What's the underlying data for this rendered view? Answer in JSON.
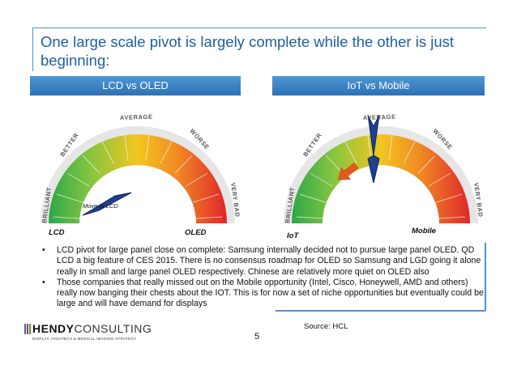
{
  "slide": {
    "title": "One large scale pivot is largely complete while the other is just beginning:",
    "page_number": "5",
    "source": "Source: HCL"
  },
  "left_panel": {
    "header": "LCD vs OLED",
    "gauge_scale": [
      "BRILLIANT",
      "BETTER",
      "AVERAGE",
      "WORSE",
      "VERY BAD"
    ],
    "label_left": "LCD",
    "label_right": "OLED",
    "annotation": "Move to LCD"
  },
  "right_panel": {
    "header": "IoT vs Mobile",
    "gauge_scale": [
      "BRILLIANT",
      "BETTER",
      "AVERAGE",
      "WORSE",
      "VERY BAD"
    ],
    "label_left": "IoT",
    "label_right": "Mobile"
  },
  "bullets": [
    "LCD pivot for large panel close on complete: Samsung internally decided not to pursue large panel OLED. QD LCD a big feature of CES 2015. There is no consensus roadmap for OLED so Samsung and LGD going it alone really in small and large panel OLED respectively. Chinese are relatively more quiet on OLED also",
    "Those companies that really missed out on the Mobile opportunity (Intel, Cisco, Honeywell, AMD and others) really now banging their chests about the IOT. This is for now a set of niche opportunities but eventually could be large and will have demand for displays"
  ],
  "bullet_marker": "•",
  "logo": {
    "name_bold": "HENDY",
    "name_light": "CONSULTING",
    "tagline": "DISPLAY, HIGHTECH & MEDICAL IMAGING STRATEGY"
  },
  "colors": {
    "title": "#1f5fa3",
    "band": "#3a84c6",
    "needle": "#1f3f8f",
    "arrow": "#e55a1c",
    "gauge_green": "#2da84a",
    "gauge_yellow": "#f2c61f",
    "gauge_red": "#e0262b"
  }
}
